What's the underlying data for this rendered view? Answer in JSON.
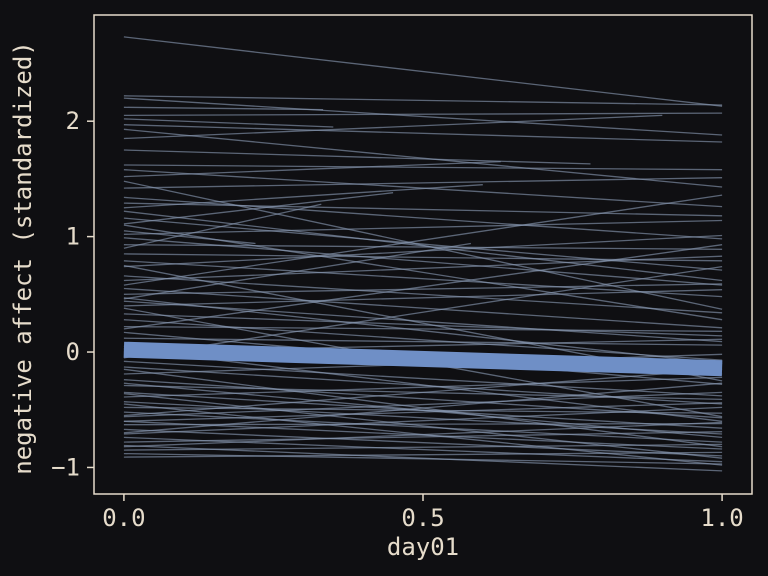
{
  "chart_data": {
    "type": "line",
    "xlabel": "day01",
    "ylabel": "negative affect (standardized)",
    "xlim": [
      -0.05,
      1.05
    ],
    "ylim": [
      -1.23,
      2.92
    ],
    "x_ticks": [
      0.0,
      0.5,
      1.0
    ],
    "x_tick_labels": [
      "0.0",
      "0.5",
      "1.0"
    ],
    "y_ticks": [
      -1,
      0,
      1,
      2
    ],
    "y_tick_labels": [
      "−1",
      "0",
      "1",
      "2"
    ],
    "grid": false,
    "legend": "none",
    "colors": {
      "background": "#0f0f12",
      "frame": "#e6dccb",
      "individual_lines": "#8a9bb5",
      "mean_line": "#6f8fc6"
    },
    "series": [
      {
        "x": [
          0,
          1
        ],
        "y": [
          2.73,
          2.13
        ]
      },
      {
        "x": [
          0,
          1
        ],
        "y": [
          2.22,
          2.14
        ]
      },
      {
        "x": [
          0,
          1
        ],
        "y": [
          2.2,
          1.88
        ]
      },
      {
        "x": [
          0,
          1
        ],
        "y": [
          2.05,
          2.07
        ]
      },
      {
        "x": [
          0,
          1
        ],
        "y": [
          1.97,
          1.82
        ]
      },
      {
        "x": [
          0,
          1
        ],
        "y": [
          1.93,
          1.43
        ]
      },
      {
        "x": [
          0,
          1
        ],
        "y": [
          1.62,
          1.58
        ]
      },
      {
        "x": [
          0,
          1
        ],
        "y": [
          1.58,
          1.26
        ]
      },
      {
        "x": [
          0,
          1
        ],
        "y": [
          1.42,
          1.51
        ]
      },
      {
        "x": [
          0,
          1
        ],
        "y": [
          1.34,
          0.98
        ]
      },
      {
        "x": [
          0,
          1
        ],
        "y": [
          1.29,
          1.18
        ]
      },
      {
        "x": [
          0,
          1
        ],
        "y": [
          1.22,
          0.62
        ]
      },
      {
        "x": [
          0,
          1
        ],
        "y": [
          1.16,
          0.71
        ]
      },
      {
        "x": [
          0,
          1
        ],
        "y": [
          1.02,
          1.14
        ]
      },
      {
        "x": [
          0,
          1
        ],
        "y": [
          0.99,
          0.58
        ]
      },
      {
        "x": [
          0,
          1
        ],
        "y": [
          0.93,
          0.89
        ]
      },
      {
        "x": [
          0,
          1
        ],
        "y": [
          0.85,
          0.79
        ]
      },
      {
        "x": [
          0,
          1
        ],
        "y": [
          0.79,
          0.48
        ]
      },
      {
        "x": [
          0,
          1
        ],
        "y": [
          0.74,
          1.01
        ]
      },
      {
        "x": [
          0,
          1
        ],
        "y": [
          0.66,
          0.34
        ]
      },
      {
        "x": [
          0,
          1
        ],
        "y": [
          0.62,
          0.83
        ]
      },
      {
        "x": [
          0,
          1
        ],
        "y": [
          0.55,
          0.21
        ]
      },
      {
        "x": [
          0,
          1
        ],
        "y": [
          0.5,
          0.59
        ]
      },
      {
        "x": [
          0,
          1
        ],
        "y": [
          0.44,
          0.09
        ]
      },
      {
        "x": [
          0,
          1
        ],
        "y": [
          0.4,
          0.54
        ]
      },
      {
        "x": [
          0,
          1
        ],
        "y": [
          0.33,
          0.14
        ]
      },
      {
        "x": [
          0,
          1
        ],
        "y": [
          0.28,
          -0.07
        ]
      },
      {
        "x": [
          0,
          1
        ],
        "y": [
          0.22,
          0.18
        ]
      },
      {
        "x": [
          0,
          1
        ],
        "y": [
          0.17,
          -0.28
        ]
      },
      {
        "x": [
          0,
          1
        ],
        "y": [
          0.12,
          0.06
        ]
      },
      {
        "x": [
          0,
          1
        ],
        "y": [
          0.05,
          -0.19
        ]
      },
      {
        "x": [
          0,
          1
        ],
        "y": [
          0.0,
          0.11
        ]
      },
      {
        "x": [
          0,
          1
        ],
        "y": [
          -0.08,
          -0.38
        ]
      },
      {
        "x": [
          0,
          1
        ],
        "y": [
          -0.13,
          -0.45
        ]
      },
      {
        "x": [
          0,
          1
        ],
        "y": [
          -0.19,
          -0.02
        ]
      },
      {
        "x": [
          0,
          1
        ],
        "y": [
          -0.24,
          -0.57
        ]
      },
      {
        "x": [
          0,
          1
        ],
        "y": [
          -0.29,
          -0.41
        ]
      },
      {
        "x": [
          0,
          1
        ],
        "y": [
          -0.35,
          -0.66
        ]
      },
      {
        "x": [
          0,
          1
        ],
        "y": [
          -0.39,
          -0.22
        ]
      },
      {
        "x": [
          0,
          1
        ],
        "y": [
          -0.43,
          -0.71
        ]
      },
      {
        "x": [
          0,
          1
        ],
        "y": [
          -0.48,
          -0.53
        ]
      },
      {
        "x": [
          0,
          1
        ],
        "y": [
          -0.52,
          -0.78
        ]
      },
      {
        "x": [
          0,
          1
        ],
        "y": [
          -0.56,
          -0.35
        ]
      },
      {
        "x": [
          0,
          1
        ],
        "y": [
          -0.6,
          -0.84
        ]
      },
      {
        "x": [
          0,
          1
        ],
        "y": [
          -0.63,
          -0.62
        ]
      },
      {
        "x": [
          0,
          1
        ],
        "y": [
          -0.67,
          -0.9
        ]
      },
      {
        "x": [
          0,
          1
        ],
        "y": [
          -0.71,
          -0.48
        ]
      },
      {
        "x": [
          0,
          1
        ],
        "y": [
          -0.74,
          -0.95
        ]
      },
      {
        "x": [
          0,
          1
        ],
        "y": [
          -0.78,
          -0.69
        ]
      },
      {
        "x": [
          0,
          1
        ],
        "y": [
          -0.81,
          -1.03
        ]
      },
      {
        "x": [
          0,
          1
        ],
        "y": [
          -0.85,
          -0.8
        ]
      },
      {
        "x": [
          0,
          1
        ],
        "y": [
          -0.88,
          -0.97
        ]
      },
      {
        "x": [
          0,
          1
        ],
        "y": [
          -0.91,
          -0.87
        ]
      },
      {
        "x": [
          0,
          1
        ],
        "y": [
          -0.6,
          -0.44
        ]
      },
      {
        "x": [
          0,
          1
        ],
        "y": [
          -0.45,
          -0.98
        ]
      },
      {
        "x": [
          0,
          1
        ],
        "y": [
          -0.7,
          -0.27
        ]
      },
      {
        "x": [
          0,
          1
        ],
        "y": [
          -0.36,
          -0.92
        ]
      },
      {
        "x": [
          0,
          1
        ],
        "y": [
          -0.82,
          -0.61
        ]
      },
      {
        "x": [
          0,
          1
        ],
        "y": [
          -0.27,
          -0.74
        ]
      },
      {
        "x": [
          0,
          1
        ],
        "y": [
          -0.55,
          -0.15
        ]
      },
      {
        "x": [
          0,
          1
        ],
        "y": [
          0.38,
          -0.56
        ]
      },
      {
        "x": [
          0,
          1
        ],
        "y": [
          0.75,
          -0.25
        ]
      },
      {
        "x": [
          0,
          1
        ],
        "y": [
          1.1,
          0.28
        ]
      },
      {
        "x": [
          0,
          1
        ],
        "y": [
          0.2,
          0.93
        ]
      },
      {
        "x": [
          0,
          1
        ],
        "y": [
          -0.05,
          0.74
        ]
      },
      {
        "x": [
          0,
          1
        ],
        "y": [
          1.48,
          0.37
        ]
      },
      {
        "x": [
          0,
          1
        ],
        "y": [
          0.58,
          1.36
        ]
      },
      {
        "x": [
          0,
          1
        ],
        "y": [
          0.03,
          -0.6
        ]
      },
      {
        "x": [
          0,
          1
        ],
        "y": [
          -0.15,
          -0.82
        ]
      },
      {
        "x": [
          0,
          1
        ],
        "y": [
          0.47,
          -0.1
        ]
      },
      {
        "x": [
          0,
          0.333
        ],
        "y": [
          2.12,
          2.1
        ]
      },
      {
        "x": [
          0,
          0.35
        ],
        "y": [
          2.02,
          1.95
        ]
      },
      {
        "x": [
          0,
          0.9
        ],
        "y": [
          1.85,
          2.05
        ]
      },
      {
        "x": [
          0,
          0.78
        ],
        "y": [
          1.75,
          1.63
        ]
      },
      {
        "x": [
          0,
          0.63
        ],
        "y": [
          1.52,
          1.65
        ]
      },
      {
        "x": [
          0,
          0.6
        ],
        "y": [
          1.25,
          1.45
        ]
      },
      {
        "x": [
          0,
          0.45
        ],
        "y": [
          1.11,
          1.38
        ]
      },
      {
        "x": [
          0,
          0.22
        ],
        "y": [
          1.05,
          0.94
        ]
      },
      {
        "x": [
          0,
          0.33
        ],
        "y": [
          0.9,
          1.28
        ]
      },
      {
        "x": [
          0,
          0.58
        ],
        "y": [
          0.46,
          0.94
        ]
      }
    ],
    "mean_line": {
      "x": [
        0,
        1
      ],
      "y": [
        0.02,
        -0.14
      ]
    }
  }
}
